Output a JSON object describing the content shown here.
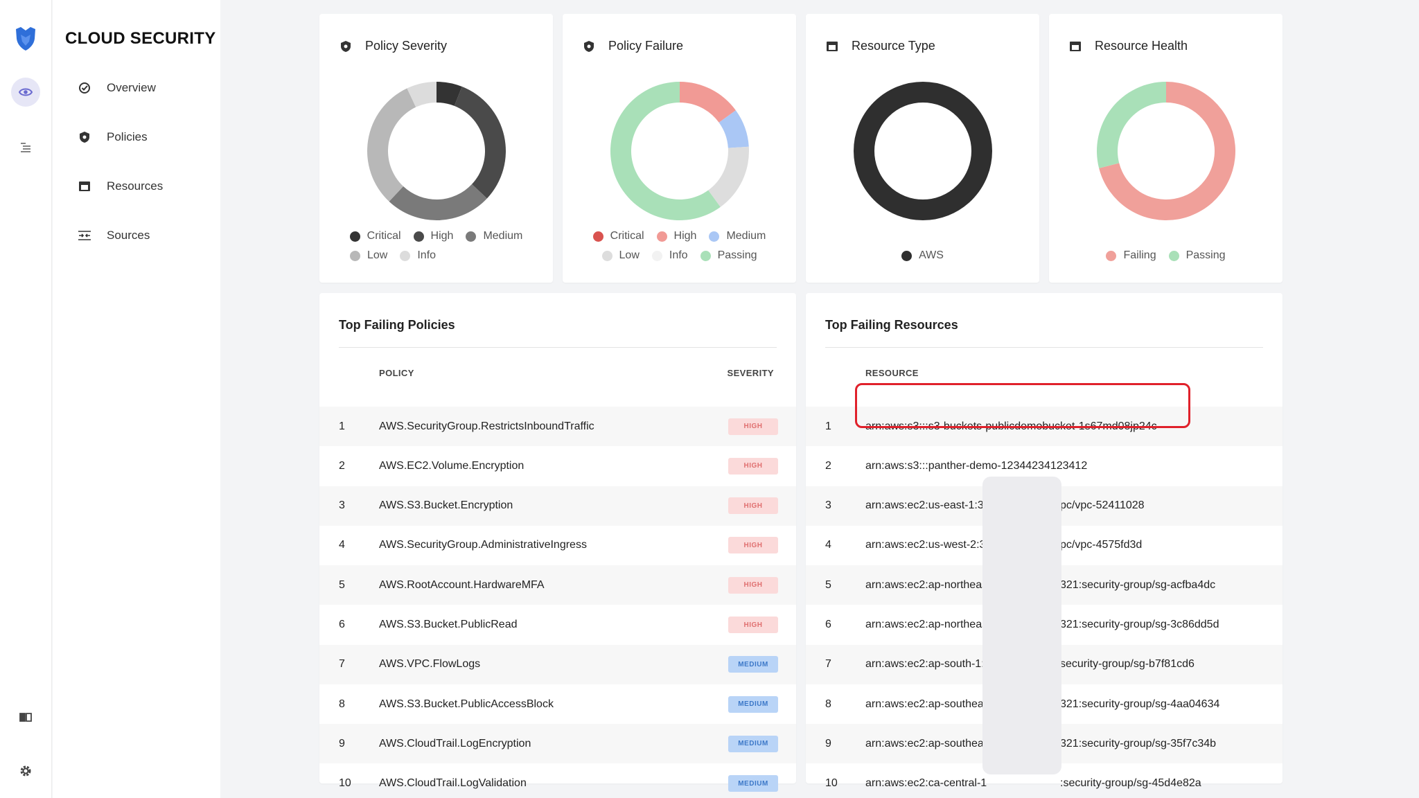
{
  "app": {
    "title": "CLOUD SECURITY"
  },
  "rail": {
    "icons": [
      "panther-logo-icon",
      "eye-icon",
      "list-icon",
      "book-icon",
      "gear-icon"
    ]
  },
  "nav": {
    "items": [
      {
        "label": "Overview",
        "icon": "check-circle-icon"
      },
      {
        "label": "Policies",
        "icon": "shield-icon"
      },
      {
        "label": "Resources",
        "icon": "box-icon"
      },
      {
        "label": "Sources",
        "icon": "sources-icon"
      }
    ]
  },
  "charts": {
    "policy_severity": {
      "title": "Policy Severity",
      "legend": [
        "Critical",
        "High",
        "Medium",
        "Low",
        "Info"
      ]
    },
    "policy_failure": {
      "title": "Policy Failure",
      "legend": [
        "Critical",
        "High",
        "Medium",
        "Low",
        "Info",
        "Passing"
      ]
    },
    "resource_type": {
      "title": "Resource Type",
      "legend": [
        "AWS"
      ]
    },
    "resource_health": {
      "title": "Resource Health",
      "legend": [
        "Failing",
        "Passing"
      ]
    }
  },
  "chart_data": [
    {
      "type": "pie",
      "title": "Policy Severity",
      "categories": [
        "Critical",
        "High",
        "Medium",
        "Low",
        "Info"
      ],
      "values": [
        6,
        31,
        25,
        31,
        7
      ],
      "colors": [
        "#333333",
        "#4a4a4a",
        "#7a7a7a",
        "#b8b8b8",
        "#dcdcdc"
      ]
    },
    {
      "type": "pie",
      "title": "Policy Failure",
      "categories": [
        "Critical",
        "High",
        "Medium",
        "Low",
        "Info",
        "Passing"
      ],
      "values": [
        0,
        15,
        9,
        16,
        0,
        60
      ],
      "colors": [
        "#d9534f",
        "#f19a95",
        "#aac7f5",
        "#dddddd",
        "#f2f2f2",
        "#a9e0b8"
      ]
    },
    {
      "type": "pie",
      "title": "Resource Type",
      "categories": [
        "AWS"
      ],
      "values": [
        100
      ],
      "colors": [
        "#2f2f2f"
      ]
    },
    {
      "type": "pie",
      "title": "Resource Health",
      "categories": [
        "Failing",
        "Passing"
      ],
      "values": [
        71,
        29
      ],
      "colors": [
        "#f0a09a",
        "#a9e0b8"
      ]
    }
  ],
  "policies_table": {
    "title": "Top Failing Policies",
    "col_policy": "POLICY",
    "col_severity": "SEVERITY",
    "rows": [
      {
        "n": "1",
        "name": "AWS.SecurityGroup.RestrictsInboundTraffic",
        "severity": "HIGH"
      },
      {
        "n": "2",
        "name": "AWS.EC2.Volume.Encryption",
        "severity": "HIGH"
      },
      {
        "n": "3",
        "name": "AWS.S3.Bucket.Encryption",
        "severity": "HIGH"
      },
      {
        "n": "4",
        "name": "AWS.SecurityGroup.AdministrativeIngress",
        "severity": "HIGH"
      },
      {
        "n": "5",
        "name": "AWS.RootAccount.HardwareMFA",
        "severity": "HIGH"
      },
      {
        "n": "6",
        "name": "AWS.S3.Bucket.PublicRead",
        "severity": "HIGH"
      },
      {
        "n": "7",
        "name": "AWS.VPC.FlowLogs",
        "severity": "MEDIUM"
      },
      {
        "n": "8",
        "name": "AWS.S3.Bucket.PublicAccessBlock",
        "severity": "MEDIUM"
      },
      {
        "n": "9",
        "name": "AWS.CloudTrail.LogEncryption",
        "severity": "MEDIUM"
      },
      {
        "n": "10",
        "name": "AWS.CloudTrail.LogValidation",
        "severity": "MEDIUM"
      }
    ]
  },
  "resources_table": {
    "title": "Top Failing Resources",
    "col_resource": "RESOURCE",
    "rows": [
      {
        "n": "1",
        "a": "arn:aws:s3:::s3-buckets-publicdemobucket-1s67md08jp24c",
        "b": ""
      },
      {
        "n": "2",
        "a": "arn:aws:s3:::panther-demo-12344234123412",
        "b": ""
      },
      {
        "n": "3",
        "a": "arn:aws:ec2:us-east-1:3",
        "b": "pc/vpc-52411028"
      },
      {
        "n": "4",
        "a": "arn:aws:ec2:us-west-2:3",
        "b": "pc/vpc-4575fd3d"
      },
      {
        "n": "5",
        "a": "arn:aws:ec2:ap-northeas",
        "b": "321:security-group/sg-acfba4dc"
      },
      {
        "n": "6",
        "a": "arn:aws:ec2:ap-northeas",
        "b": "321:security-group/sg-3c86dd5d"
      },
      {
        "n": "7",
        "a": "arn:aws:ec2:ap-south-1:",
        "b": "security-group/sg-b7f81cd6"
      },
      {
        "n": "8",
        "a": "arn:aws:ec2:ap-southea",
        "b": "321:security-group/sg-4aa04634"
      },
      {
        "n": "9",
        "a": "arn:aws:ec2:ap-southea",
        "b": "321:security-group/sg-35f7c34b"
      },
      {
        "n": "10",
        "a": "arn:aws:ec2:ca-central-1",
        "b": ":security-group/sg-45d4e82a"
      }
    ]
  }
}
